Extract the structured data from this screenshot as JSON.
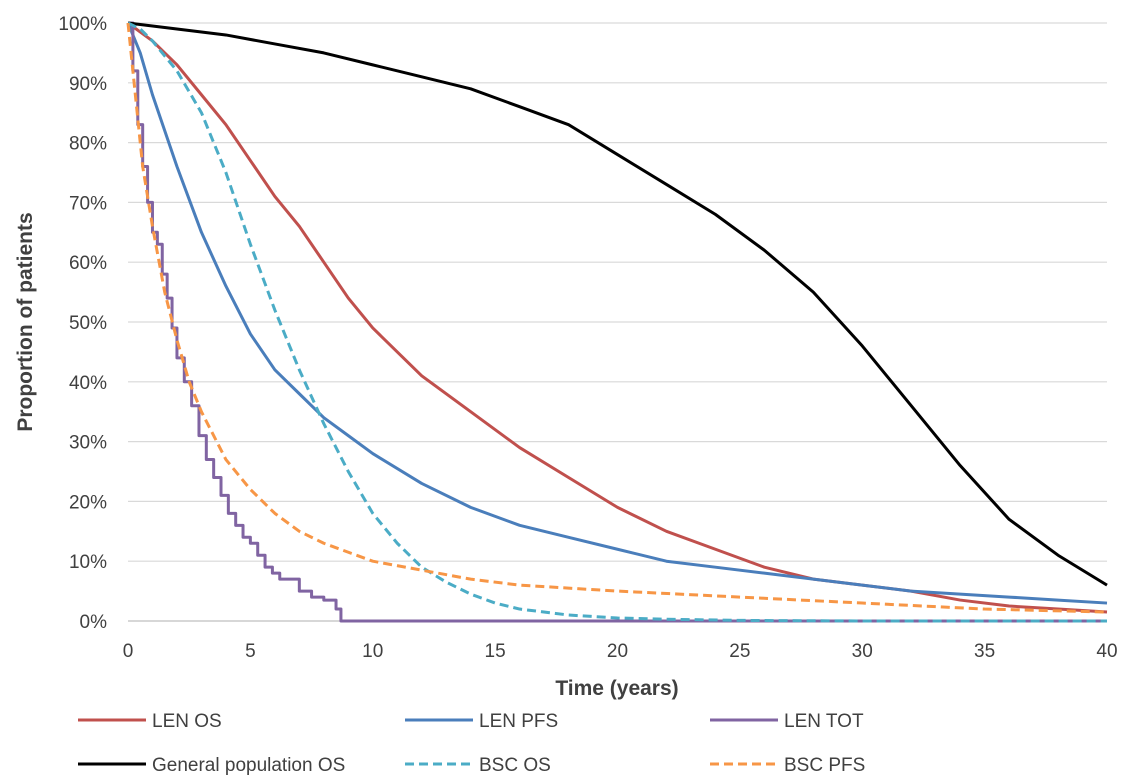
{
  "chart_data": {
    "type": "line",
    "title": "",
    "xlabel": "Time (years)",
    "ylabel": "Proportion of patients",
    "xlim": [
      0,
      40
    ],
    "ylim": [
      0,
      100
    ],
    "x_ticks": [
      0,
      5,
      10,
      15,
      20,
      25,
      30,
      35,
      40
    ],
    "x_tick_labels": [
      "0",
      "5",
      "10",
      "15",
      "20",
      "25",
      "30",
      "35",
      "40"
    ],
    "y_ticks": [
      0,
      10,
      20,
      30,
      40,
      50,
      60,
      70,
      80,
      90,
      100
    ],
    "y_tick_labels": [
      "0%",
      "10%",
      "20%",
      "30%",
      "40%",
      "50%",
      "60%",
      "70%",
      "80%",
      "90%",
      "100%"
    ],
    "grid": "horizontal",
    "legend_position": "bottom",
    "series": [
      {
        "name": "LEN OS",
        "color": "#c0504d",
        "dash": "solid",
        "x": [
          0,
          1,
          2,
          3,
          4,
          5,
          6,
          7,
          8,
          9,
          10,
          12,
          14,
          16,
          18,
          20,
          22,
          24,
          26,
          28,
          30,
          32,
          34,
          36,
          38,
          40
        ],
        "y": [
          100,
          97,
          93,
          88,
          83,
          77,
          71,
          66,
          60,
          54,
          49,
          41,
          35,
          29,
          24,
          19,
          15,
          12,
          9,
          7,
          6,
          5,
          3.5,
          2.5,
          2,
          1.5
        ]
      },
      {
        "name": "LEN PFS",
        "color": "#4a7ebb",
        "dash": "solid",
        "x": [
          0,
          0.5,
          1,
          2,
          3,
          4,
          5,
          6,
          7,
          8,
          9,
          10,
          12,
          14,
          16,
          18,
          20,
          22,
          24,
          26,
          28,
          30,
          32,
          34,
          36,
          38,
          40
        ],
        "y": [
          100,
          95,
          88,
          76,
          65,
          56,
          48,
          42,
          38,
          34,
          31,
          28,
          23,
          19,
          16,
          14,
          12,
          10,
          9,
          8,
          7,
          6,
          5,
          4.5,
          4,
          3.5,
          3
        ]
      },
      {
        "name": "LEN TOT",
        "color": "#8064a2",
        "dash": "step",
        "x": [
          0,
          0.2,
          0.4,
          0.6,
          0.8,
          1.0,
          1.2,
          1.4,
          1.6,
          1.8,
          2.0,
          2.3,
          2.6,
          2.9,
          3.2,
          3.5,
          3.8,
          4.1,
          4.4,
          4.7,
          5.0,
          5.3,
          5.6,
          5.9,
          6.2,
          6.5,
          7.0,
          7.5,
          8.0,
          8.5,
          8.7,
          40
        ],
        "y": [
          100,
          92,
          83,
          76,
          70,
          65,
          63,
          58,
          54,
          49,
          44,
          40,
          36,
          31,
          27,
          24,
          21,
          18,
          16,
          14,
          13,
          11,
          9,
          8,
          7,
          7,
          5,
          4,
          3.5,
          2,
          0,
          0
        ]
      },
      {
        "name": "General population OS",
        "color": "#000000",
        "dash": "solid",
        "x": [
          0,
          2,
          4,
          6,
          8,
          10,
          12,
          14,
          16,
          18,
          20,
          22,
          24,
          26,
          28,
          30,
          32,
          34,
          36,
          38,
          40
        ],
        "y": [
          100,
          99,
          98,
          96.5,
          95,
          93,
          91,
          89,
          86,
          83,
          78,
          73,
          68,
          62,
          55,
          46,
          36,
          26,
          17,
          11,
          6
        ]
      },
      {
        "name": "BSC OS",
        "color": "#4bacc6",
        "dash": "dashed",
        "x": [
          0,
          0.5,
          1,
          2,
          3,
          4,
          5,
          6,
          7,
          8,
          9,
          10,
          11,
          12,
          13,
          14,
          15,
          16,
          18,
          20,
          22,
          25,
          30,
          35,
          40
        ],
        "y": [
          100,
          99,
          97,
          92,
          85,
          75,
          63,
          52,
          42,
          33,
          25,
          18,
          13,
          9,
          6.5,
          4.5,
          3,
          2,
          1,
          0.5,
          0.3,
          0.1,
          0,
          0,
          0
        ]
      },
      {
        "name": "BSC PFS",
        "color": "#f79646",
        "dash": "dashed",
        "x": [
          0,
          0.3,
          0.6,
          1,
          1.5,
          2,
          2.5,
          3,
          4,
          5,
          6,
          7,
          8,
          10,
          12,
          14,
          16,
          18,
          20,
          25,
          30,
          35,
          40
        ],
        "y": [
          100,
          88,
          76,
          66,
          55,
          47,
          40,
          35,
          27,
          22,
          18,
          15,
          13,
          10,
          8.5,
          7,
          6,
          5.5,
          5,
          4,
          3,
          2,
          1.5
        ]
      }
    ]
  }
}
